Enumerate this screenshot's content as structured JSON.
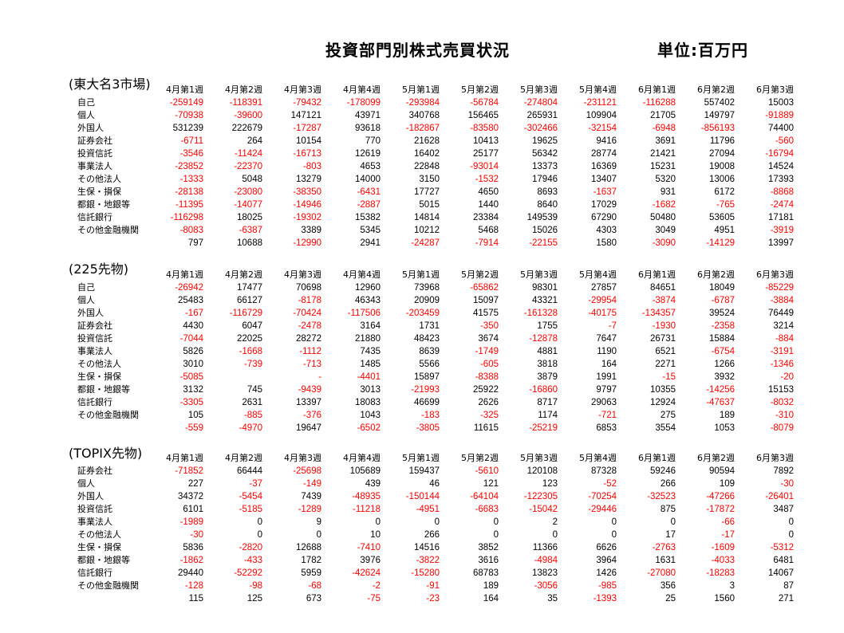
{
  "title": "投資部門別株式売買状況",
  "unit": "単位:百万円",
  "columns": [
    "4月第1週",
    "4月第2週",
    "4月第3週",
    "4月第4週",
    "5月第1週",
    "5月第2週",
    "5月第3週",
    "5月第4週",
    "6月第1週",
    "6月第2週",
    "6月第3週"
  ],
  "colors": {
    "negative": "#ff0000",
    "positive": "#000000"
  },
  "sections": [
    {
      "label": "(東大名3市場)",
      "rows": [
        {
          "label": "自己",
          "values": [
            "-259149",
            "-118391",
            "-79432",
            "-178099",
            "-293984",
            "-56784",
            "-274804",
            "-231121",
            "-116288",
            "557402",
            "15003"
          ]
        },
        {
          "label": "個人",
          "values": [
            "-70938",
            "-39600",
            "147121",
            "43971",
            "340768",
            "156465",
            "265931",
            "109904",
            "21705",
            "149797",
            "-91889"
          ]
        },
        {
          "label": "外国人",
          "values": [
            "531239",
            "222679",
            "-17287",
            "93618",
            "-182867",
            "-83580",
            "-302466",
            "-32154",
            "-6948",
            "-856193",
            "74400"
          ]
        },
        {
          "label": "証券会社",
          "values": [
            "-6711",
            "264",
            "10154",
            "770",
            "21628",
            "10413",
            "19625",
            "9416",
            "3691",
            "11796",
            "-560"
          ]
        },
        {
          "label": "投資信託",
          "values": [
            "-3546",
            "-11424",
            "-16713",
            "12619",
            "16402",
            "25177",
            "56342",
            "28774",
            "21421",
            "27094",
            "-16794"
          ]
        },
        {
          "label": "事業法人",
          "values": [
            "-23852",
            "-22370",
            "-803",
            "4653",
            "22848",
            "-93014",
            "13373",
            "16369",
            "15231",
            "19008",
            "14524"
          ]
        },
        {
          "label": "その他法人",
          "values": [
            "-1333",
            "5048",
            "13279",
            "14000",
            "3150",
            "-1532",
            "17946",
            "13407",
            "5320",
            "13006",
            "17393"
          ]
        },
        {
          "label": "生保・損保",
          "values": [
            "-28138",
            "-23080",
            "-38350",
            "-6431",
            "17727",
            "4650",
            "8693",
            "-1637",
            "931",
            "6172",
            "-8868"
          ]
        },
        {
          "label": "都銀・地銀等",
          "values": [
            "-11395",
            "-14077",
            "-14946",
            "-2887",
            "5015",
            "1440",
            "8640",
            "17029",
            "-1682",
            "-765",
            "-2474"
          ]
        },
        {
          "label": "信託銀行",
          "values": [
            "-116298",
            "18025",
            "-19302",
            "15382",
            "14814",
            "23384",
            "149539",
            "67290",
            "50480",
            "53605",
            "17181"
          ]
        },
        {
          "label": "その他金融機関",
          "values": [
            "-8083",
            "-6387",
            "3389",
            "5345",
            "10212",
            "5468",
            "15026",
            "4303",
            "3049",
            "4951",
            "-3919"
          ]
        },
        {
          "label": "",
          "values": [
            "797",
            "10688",
            "-12990",
            "2941",
            "-24287",
            "-7914",
            "-22155",
            "1580",
            "-3090",
            "-14129",
            "13997"
          ]
        }
      ]
    },
    {
      "label": "(225先物)",
      "rows": [
        {
          "label": "自己",
          "values": [
            "-26942",
            "17477",
            "70698",
            "12960",
            "73968",
            "-65862",
            "98301",
            "27857",
            "84651",
            "18049",
            "-85229"
          ]
        },
        {
          "label": "個人",
          "values": [
            "25483",
            "66127",
            "-8178",
            "46343",
            "20909",
            "15097",
            "43321",
            "-29954",
            "-3874",
            "-6787",
            "-3884"
          ]
        },
        {
          "label": "外国人",
          "values": [
            "-167",
            "-116729",
            "-70424",
            "-117506",
            "-203459",
            "41575",
            "-161328",
            "-40175",
            "-134357",
            "39524",
            "76449"
          ]
        },
        {
          "label": "証券会社",
          "values": [
            "4430",
            "6047",
            "-2478",
            "3164",
            "1731",
            "-350",
            "1755",
            "-7",
            "-1930",
            "-2358",
            "3214"
          ]
        },
        {
          "label": "投資信託",
          "values": [
            "-7044",
            "22025",
            "28272",
            "21880",
            "48423",
            "3674",
            "-12878",
            "7647",
            "26731",
            "15884",
            "-884"
          ]
        },
        {
          "label": "事業法人",
          "values": [
            "5826",
            "-1668",
            "-1112",
            "7435",
            "8639",
            "-1749",
            "4881",
            "1190",
            "6521",
            "-6754",
            "-3191"
          ]
        },
        {
          "label": "その他法人",
          "values": [
            "3010",
            "-739",
            "-713",
            "1485",
            "5566",
            "-605",
            "3818",
            "164",
            "2271",
            "1266",
            "-1346"
          ]
        },
        {
          "label": "生保・損保",
          "values": [
            "-5085",
            "",
            "-",
            "-4401",
            "15897",
            "-8388",
            "3879",
            "1991",
            "-15",
            "3932",
            "-20"
          ]
        },
        {
          "label": "都銀・地銀等",
          "values": [
            "3132",
            "745",
            "-9439",
            "3013",
            "-21993",
            "25922",
            "-16860",
            "9797",
            "10355",
            "-14256",
            "15153"
          ]
        },
        {
          "label": "信託銀行",
          "values": [
            "-3305",
            "2631",
            "13397",
            "18083",
            "46699",
            "2626",
            "8717",
            "29063",
            "12924",
            "-47637",
            "-8032"
          ]
        },
        {
          "label": "その他金融機関",
          "values": [
            "105",
            "-885",
            "-376",
            "1043",
            "-183",
            "-325",
            "1174",
            "-721",
            "275",
            "189",
            "-310"
          ]
        },
        {
          "label": "",
          "values": [
            "-559",
            "-4970",
            "19647",
            "-6502",
            "-3805",
            "11615",
            "-25219",
            "6853",
            "3554",
            "1053",
            "-8079"
          ]
        }
      ]
    },
    {
      "label": "(TOPIX先物)",
      "rows": [
        {
          "label": "証券会社",
          "values": [
            "-71852",
            "66444",
            "-25698",
            "105689",
            "159437",
            "-5610",
            "120108",
            "87328",
            "59246",
            "90594",
            "7892"
          ]
        },
        {
          "label": "個人",
          "values": [
            "227",
            "-37",
            "-149",
            "439",
            "46",
            "121",
            "123",
            "-52",
            "266",
            "109",
            "-30"
          ]
        },
        {
          "label": "外国人",
          "values": [
            "34372",
            "-5454",
            "7439",
            "-48935",
            "-150144",
            "-64104",
            "-122305",
            "-70254",
            "-32523",
            "-47266",
            "-26401"
          ]
        },
        {
          "label": "投資信託",
          "values": [
            "6101",
            "-5185",
            "-1289",
            "-11218",
            "-4951",
            "-6683",
            "-15042",
            "-29446",
            "875",
            "-17872",
            "3487"
          ]
        },
        {
          "label": "事業法人",
          "values": [
            "-1989",
            "0",
            "9",
            "0",
            "0",
            "0",
            "2",
            "0",
            "0",
            "-66",
            "0"
          ]
        },
        {
          "label": "その他法人",
          "values": [
            "-30",
            "0",
            "0",
            "10",
            "266",
            "0",
            "0",
            "0",
            "17",
            "-17",
            "0"
          ]
        },
        {
          "label": "生保・損保",
          "values": [
            "5836",
            "-2820",
            "12688",
            "-7410",
            "14516",
            "3852",
            "11366",
            "6626",
            "-2763",
            "-1609",
            "-5312"
          ]
        },
        {
          "label": "都銀・地銀等",
          "values": [
            "-1862",
            "-433",
            "1782",
            "3976",
            "-3822",
            "3616",
            "-4984",
            "3964",
            "1631",
            "-4033",
            "6481"
          ]
        },
        {
          "label": "信託銀行",
          "values": [
            "29440",
            "-52292",
            "5959",
            "-42624",
            "-15280",
            "68783",
            "13823",
            "1426",
            "-27080",
            "-18283",
            "14067"
          ]
        },
        {
          "label": "その他金融機関",
          "values": [
            "-128",
            "-98",
            "-68",
            "-2",
            "-91",
            "189",
            "-3056",
            "-985",
            "356",
            "3",
            "87"
          ]
        },
        {
          "label": "",
          "values": [
            "115",
            "125",
            "673",
            "-75",
            "-23",
            "164",
            "35",
            "-1393",
            "25",
            "1560",
            "271"
          ]
        }
      ]
    }
  ]
}
